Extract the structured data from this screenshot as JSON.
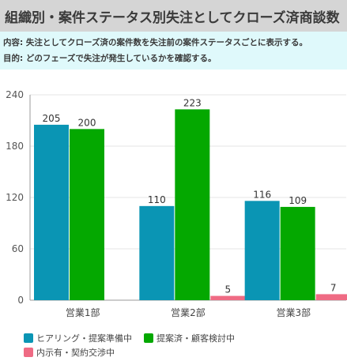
{
  "header": {
    "title": "組織別・案件ステータス別失注としてクローズ済商談数"
  },
  "description": {
    "content_label": "内容:",
    "content_text": "失注としてクローズ済の案件数を失注前の案件ステータスごとに表示する。",
    "purpose_label": "目的:",
    "purpose_text": "どのフェーズで失注が発生しているかを確認する。"
  },
  "colors": {
    "series1": "#0a95b4",
    "series2": "#04a800",
    "series3": "#ef6b84",
    "title_bg": "#d5d5d5",
    "desc_bg": "#dff9fb"
  },
  "chart_data": {
    "type": "bar",
    "categories": [
      "営業1部",
      "営業2部",
      "営業3部"
    ],
    "series": [
      {
        "name": "ヒアリング・提案準備中",
        "values": [
          205,
          110,
          116
        ]
      },
      {
        "name": "提案済・顧客検討中",
        "values": [
          200,
          223,
          109
        ]
      },
      {
        "name": "内示有・契約交渉中",
        "values": [
          0,
          5,
          7
        ]
      }
    ],
    "data_labels": [
      [
        "205",
        "200",
        ""
      ],
      [
        "110",
        "223",
        "5"
      ],
      [
        "116",
        "109",
        "7"
      ]
    ],
    "y_ticks": [
      "0",
      "60",
      "120",
      "180",
      "240"
    ],
    "ylim": [
      0,
      240
    ],
    "grid": true,
    "legend_position": "bottom-left"
  }
}
